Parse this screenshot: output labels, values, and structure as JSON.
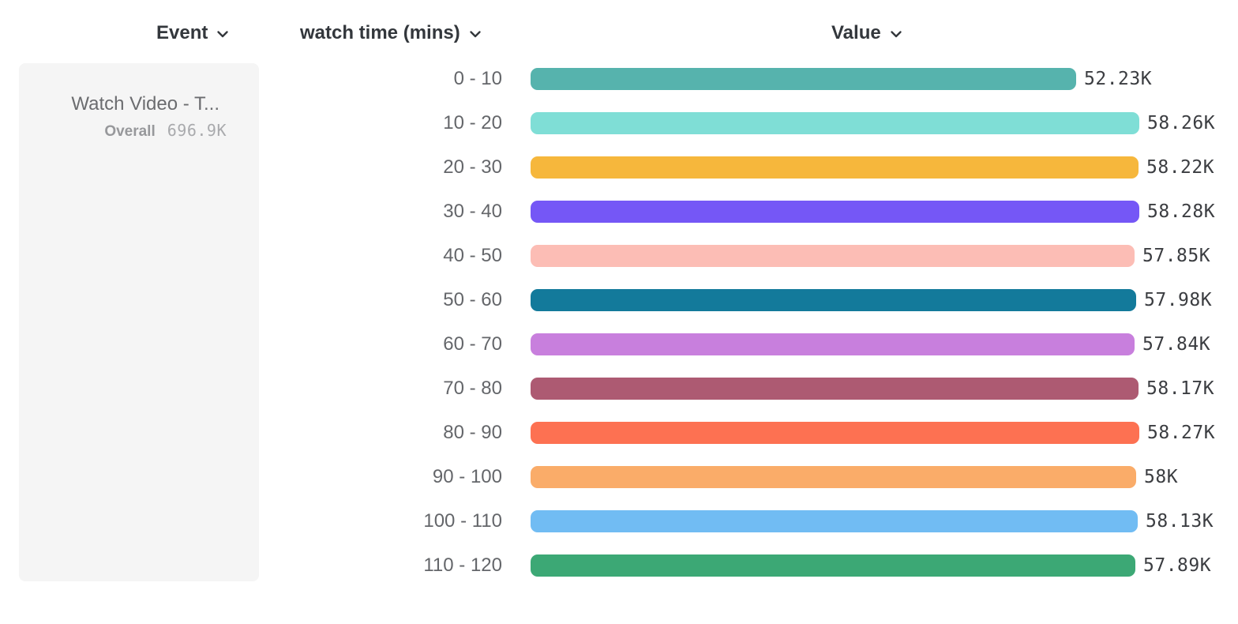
{
  "header": {
    "event_label": "Event",
    "series_label": "watch time (mins)",
    "value_label": "Value"
  },
  "event_card": {
    "title": "Watch Video - T...",
    "overall_label": "Overall",
    "overall_value": "696.9K"
  },
  "chart_data": {
    "type": "bar",
    "orientation": "horizontal",
    "title": "",
    "xlabel": "Value",
    "ylabel": "watch time (mins)",
    "legend": false,
    "grid": false,
    "xlim": [
      0,
      58280
    ],
    "categories": [
      "0 - 10",
      "10 - 20",
      "20 - 30",
      "30 - 40",
      "40 - 50",
      "50 - 60",
      "60 - 70",
      "70 - 80",
      "80 - 90",
      "90 - 100",
      "100 - 110",
      "110 - 120"
    ],
    "values": [
      52230,
      58260,
      58220,
      58280,
      57850,
      57980,
      57840,
      58170,
      58270,
      58000,
      58130,
      57890
    ],
    "value_labels": [
      "52.23K",
      "58.26K",
      "58.22K",
      "58.28K",
      "57.85K",
      "57.98K",
      "57.84K",
      "58.17K",
      "58.27K",
      "58K",
      "58.13K",
      "57.89K"
    ],
    "colors": [
      "#56b3ad",
      "#7fded6",
      "#f6b73c",
      "#7557f6",
      "#fcbdb5",
      "#137a9b",
      "#c87fdd",
      "#ad5a72",
      "#fd7152",
      "#faac69",
      "#71bcf3",
      "#3ca875"
    ]
  },
  "colors": {
    "card_bg": "#f5f5f5",
    "header_text": "#33373c",
    "category_text": "#64666a",
    "value_text": "#3b3d41",
    "page_bg": "#ffffff"
  }
}
